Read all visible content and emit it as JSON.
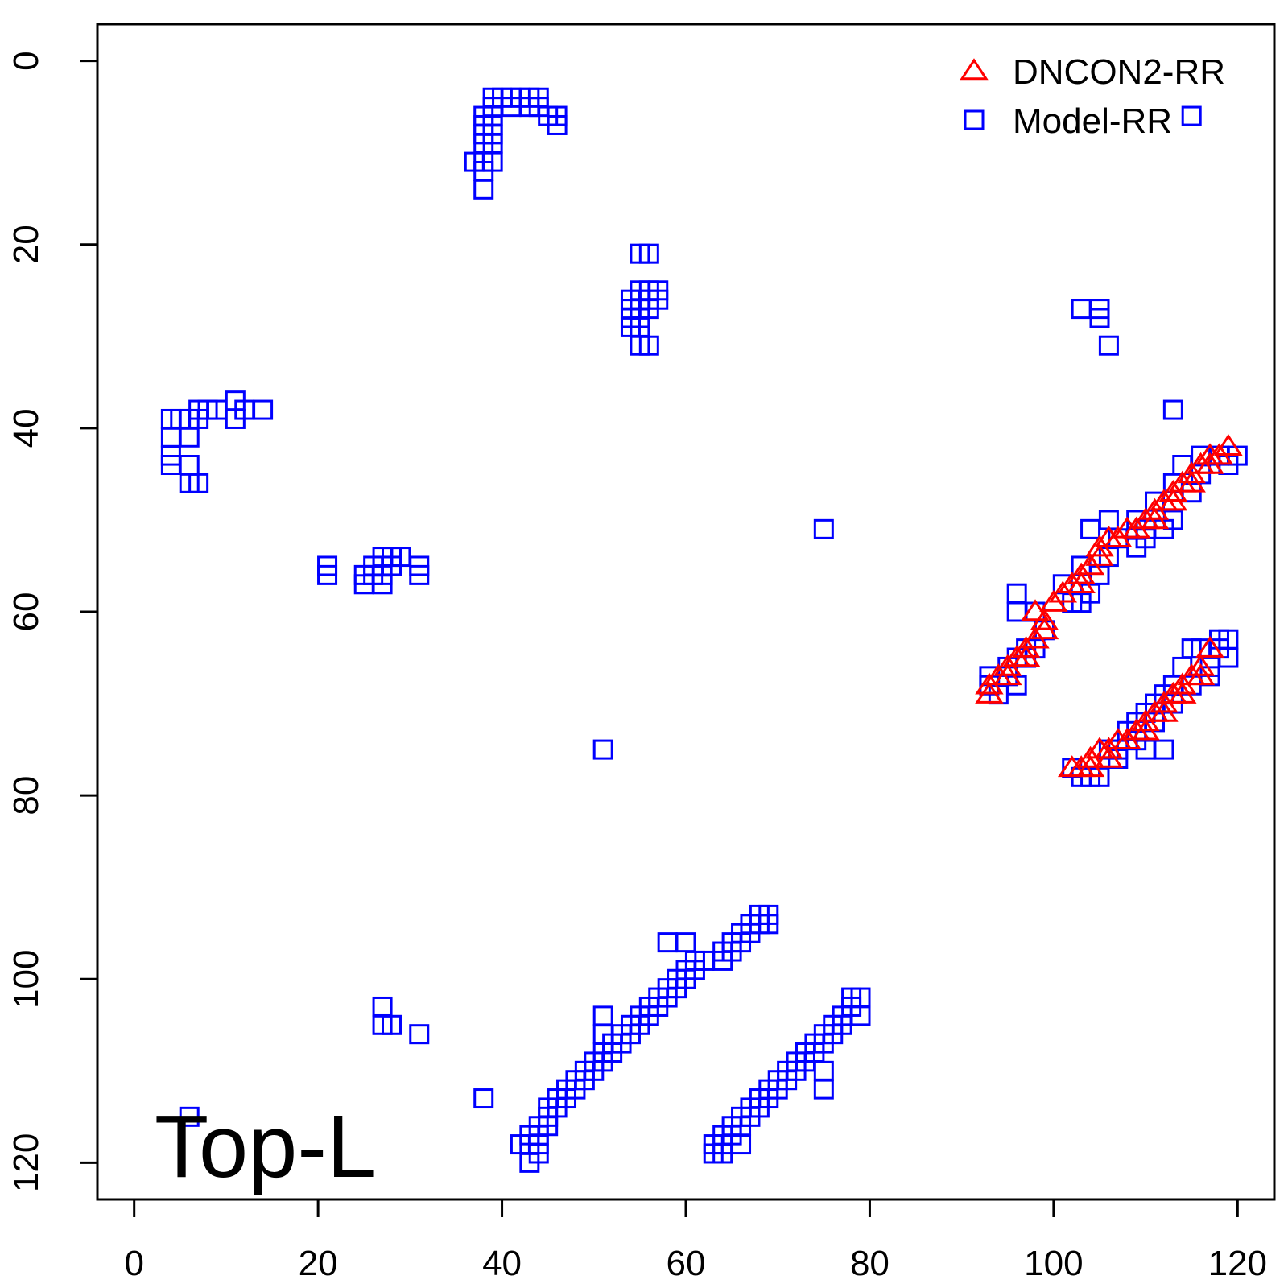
{
  "chart_data": {
    "type": "scatter",
    "title": "",
    "xlabel": "",
    "ylabel": "",
    "annotation": "Top-L",
    "xlim": [
      -4,
      124
    ],
    "ylim": [
      124,
      -4
    ],
    "y_reversed": true,
    "x_ticks": [
      0,
      20,
      40,
      60,
      80,
      100,
      120
    ],
    "y_ticks": [
      0,
      20,
      40,
      60,
      80,
      100,
      120
    ],
    "x_tick_labels": [
      "0",
      "20",
      "40",
      "60",
      "80",
      "100",
      "120"
    ],
    "y_tick_labels": [
      "0",
      "20",
      "40",
      "60",
      "80",
      "100",
      "120"
    ],
    "grid": false,
    "legend_position": "top-right",
    "series": [
      {
        "name": "DNCON2-RR",
        "marker": "triangle-open",
        "color": "#ff0000",
        "points": [
          [
            93,
            68
          ],
          [
            94,
            67
          ],
          [
            95,
            66
          ],
          [
            96,
            65
          ],
          [
            97,
            64
          ],
          [
            98,
            63
          ],
          [
            99,
            61
          ],
          [
            98,
            60
          ],
          [
            100,
            59
          ],
          [
            101,
            58
          ],
          [
            102,
            57
          ],
          [
            103,
            56
          ],
          [
            104,
            55
          ],
          [
            105,
            54
          ],
          [
            106,
            52
          ],
          [
            107,
            52
          ],
          [
            108,
            51
          ],
          [
            109,
            51
          ],
          [
            110,
            50
          ],
          [
            111,
            49
          ],
          [
            112,
            48
          ],
          [
            113,
            47
          ],
          [
            114,
            46
          ],
          [
            115,
            45
          ],
          [
            116,
            44
          ],
          [
            117,
            43
          ],
          [
            118,
            43
          ],
          [
            119,
            42
          ],
          [
            93,
            69
          ],
          [
            95,
            67
          ],
          [
            97,
            65
          ],
          [
            99,
            62
          ],
          [
            103,
            57
          ],
          [
            105,
            53
          ],
          [
            111,
            50
          ],
          [
            113,
            48
          ],
          [
            115,
            46
          ],
          [
            117,
            44
          ],
          [
            102,
            77
          ],
          [
            103,
            77
          ],
          [
            104,
            76
          ],
          [
            105,
            75
          ],
          [
            106,
            75
          ],
          [
            107,
            74
          ],
          [
            108,
            74
          ],
          [
            109,
            73
          ],
          [
            110,
            72
          ],
          [
            111,
            71
          ],
          [
            112,
            70
          ],
          [
            113,
            69
          ],
          [
            114,
            68
          ],
          [
            115,
            67
          ],
          [
            116,
            66
          ],
          [
            117,
            64
          ],
          [
            104,
            77
          ],
          [
            106,
            76
          ],
          [
            110,
            73
          ],
          [
            112,
            71
          ],
          [
            114,
            69
          ],
          [
            116,
            67
          ]
        ]
      },
      {
        "name": "Model-RR",
        "marker": "square-open",
        "color": "#0000ff",
        "points": [
          [
            39,
            4
          ],
          [
            40,
            4
          ],
          [
            41,
            4
          ],
          [
            42,
            4
          ],
          [
            43,
            4
          ],
          [
            44,
            4
          ],
          [
            39,
            5
          ],
          [
            41,
            5
          ],
          [
            43,
            5
          ],
          [
            44,
            5
          ],
          [
            45,
            6
          ],
          [
            46,
            6
          ],
          [
            46,
            7
          ],
          [
            38,
            6
          ],
          [
            39,
            6
          ],
          [
            38,
            7
          ],
          [
            39,
            7
          ],
          [
            38,
            8
          ],
          [
            39,
            8
          ],
          [
            38,
            9
          ],
          [
            39,
            9
          ],
          [
            37,
            11
          ],
          [
            38,
            11
          ],
          [
            39,
            11
          ],
          [
            38,
            12
          ],
          [
            38,
            14
          ],
          [
            55,
            21
          ],
          [
            56,
            21
          ],
          [
            55,
            25
          ],
          [
            56,
            25
          ],
          [
            57,
            25
          ],
          [
            54,
            26
          ],
          [
            55,
            26
          ],
          [
            56,
            26
          ],
          [
            57,
            26
          ],
          [
            54,
            27
          ],
          [
            55,
            27
          ],
          [
            56,
            27
          ],
          [
            54,
            28
          ],
          [
            55,
            28
          ],
          [
            54,
            29
          ],
          [
            55,
            29
          ],
          [
            55,
            31
          ],
          [
            56,
            31
          ],
          [
            103,
            27
          ],
          [
            105,
            27
          ],
          [
            105,
            28
          ],
          [
            106,
            31
          ],
          [
            115,
            6
          ],
          [
            113,
            38
          ],
          [
            4,
            39
          ],
          [
            6,
            39
          ],
          [
            7,
            38
          ],
          [
            8,
            38
          ],
          [
            9,
            38
          ],
          [
            11,
            37
          ],
          [
            12,
            38
          ],
          [
            14,
            38
          ],
          [
            11,
            39
          ],
          [
            7,
            39
          ],
          [
            5,
            39
          ],
          [
            4,
            41
          ],
          [
            6,
            41
          ],
          [
            4,
            43
          ],
          [
            4,
            44
          ],
          [
            6,
            44
          ],
          [
            6,
            46
          ],
          [
            7,
            46
          ],
          [
            21,
            55
          ],
          [
            21,
            56
          ],
          [
            25,
            56
          ],
          [
            26,
            55
          ],
          [
            27,
            54
          ],
          [
            28,
            54
          ],
          [
            29,
            54
          ],
          [
            31,
            55
          ],
          [
            31,
            56
          ],
          [
            25,
            57
          ],
          [
            27,
            57
          ],
          [
            26,
            56
          ],
          [
            27,
            55
          ],
          [
            28,
            55
          ],
          [
            27,
            56
          ],
          [
            75,
            51
          ],
          [
            51,
            75
          ],
          [
            27,
            103
          ],
          [
            27,
            105
          ],
          [
            28,
            105
          ],
          [
            31,
            106
          ],
          [
            38,
            113
          ],
          [
            6,
            115
          ],
          [
            43,
            117
          ],
          [
            43,
            118
          ],
          [
            44,
            117
          ],
          [
            43,
            120
          ],
          [
            44,
            118
          ],
          [
            44,
            116
          ],
          [
            45,
            115
          ],
          [
            45,
            114
          ],
          [
            46,
            113
          ],
          [
            46,
            114
          ],
          [
            47,
            112
          ],
          [
            47,
            113
          ],
          [
            48,
            111
          ],
          [
            48,
            112
          ],
          [
            49,
            110
          ],
          [
            49,
            111
          ],
          [
            50,
            109
          ],
          [
            50,
            110
          ],
          [
            51,
            108
          ],
          [
            51,
            109
          ],
          [
            52,
            107
          ],
          [
            52,
            108
          ],
          [
            53,
            106
          ],
          [
            53,
            107
          ],
          [
            54,
            105
          ],
          [
            54,
            106
          ],
          [
            55,
            104
          ],
          [
            55,
            105
          ],
          [
            56,
            103
          ],
          [
            56,
            104
          ],
          [
            57,
            102
          ],
          [
            57,
            103
          ],
          [
            58,
            101
          ],
          [
            58,
            102
          ],
          [
            59,
            100
          ],
          [
            59,
            101
          ],
          [
            60,
            99
          ],
          [
            60,
            100
          ],
          [
            61,
            98
          ],
          [
            61,
            99
          ],
          [
            62,
            98
          ],
          [
            64,
            97
          ],
          [
            64,
            98
          ],
          [
            65,
            96
          ],
          [
            65,
            97
          ],
          [
            66,
            95
          ],
          [
            66,
            96
          ],
          [
            67,
            94
          ],
          [
            67,
            95
          ],
          [
            68,
            93
          ],
          [
            68,
            94
          ],
          [
            69,
            93
          ],
          [
            69,
            94
          ],
          [
            58,
            96
          ],
          [
            60,
            96
          ],
          [
            51,
            104
          ],
          [
            51,
            106
          ],
          [
            45,
            116
          ],
          [
            44,
            119
          ],
          [
            42,
            118
          ],
          [
            63,
            118
          ],
          [
            63,
            119
          ],
          [
            64,
            117
          ],
          [
            64,
            118
          ],
          [
            65,
            116
          ],
          [
            65,
            117
          ],
          [
            66,
            115
          ],
          [
            66,
            116
          ],
          [
            67,
            114
          ],
          [
            67,
            115
          ],
          [
            68,
            113
          ],
          [
            68,
            114
          ],
          [
            69,
            112
          ],
          [
            69,
            113
          ],
          [
            70,
            111
          ],
          [
            70,
            112
          ],
          [
            71,
            110
          ],
          [
            71,
            111
          ],
          [
            72,
            109
          ],
          [
            72,
            110
          ],
          [
            73,
            108
          ],
          [
            73,
            109
          ],
          [
            74,
            107
          ],
          [
            74,
            108
          ],
          [
            75,
            106
          ],
          [
            75,
            107
          ],
          [
            76,
            105
          ],
          [
            76,
            106
          ],
          [
            77,
            104
          ],
          [
            77,
            105
          ],
          [
            78,
            102
          ],
          [
            78,
            103
          ],
          [
            79,
            102
          ],
          [
            79,
            104
          ],
          [
            75,
            110
          ],
          [
            75,
            112
          ],
          [
            64,
            119
          ],
          [
            66,
            118
          ],
          [
            93,
            67
          ],
          [
            93,
            68
          ],
          [
            94,
            69
          ],
          [
            95,
            66
          ],
          [
            96,
            65
          ],
          [
            96,
            68
          ],
          [
            97,
            64
          ],
          [
            96,
            60
          ],
          [
            96,
            58
          ],
          [
            98,
            60
          ],
          [
            98,
            64
          ],
          [
            99,
            62
          ],
          [
            101,
            57
          ],
          [
            102,
            59
          ],
          [
            103,
            55
          ],
          [
            104,
            51
          ],
          [
            104,
            58
          ],
          [
            106,
            50
          ],
          [
            106,
            54
          ],
          [
            107,
            52
          ],
          [
            109,
            50
          ],
          [
            109,
            53
          ],
          [
            110,
            52
          ],
          [
            111,
            48
          ],
          [
            112,
            51
          ],
          [
            113,
            46
          ],
          [
            114,
            44
          ],
          [
            116,
            43
          ],
          [
            118,
            43
          ],
          [
            120,
            43
          ],
          [
            119,
            44
          ],
          [
            116,
            45
          ],
          [
            115,
            47
          ],
          [
            113,
            50
          ],
          [
            110,
            51
          ],
          [
            105,
            56
          ],
          [
            103,
            59
          ],
          [
            97,
            65
          ],
          [
            95,
            67
          ],
          [
            102,
            77
          ],
          [
            103,
            78
          ],
          [
            104,
            78
          ],
          [
            105,
            78
          ],
          [
            106,
            75
          ],
          [
            107,
            76
          ],
          [
            108,
            73
          ],
          [
            109,
            72
          ],
          [
            110,
            71
          ],
          [
            110,
            75
          ],
          [
            111,
            70
          ],
          [
            112,
            69
          ],
          [
            112,
            75
          ],
          [
            113,
            68
          ],
          [
            114,
            66
          ],
          [
            115,
            64
          ],
          [
            116,
            64
          ],
          [
            117,
            67
          ],
          [
            118,
            64
          ],
          [
            118,
            63
          ],
          [
            119,
            65
          ],
          [
            119,
            63
          ],
          [
            109,
            74
          ],
          [
            107,
            75
          ],
          [
            111,
            72
          ],
          [
            113,
            70
          ],
          [
            115,
            68
          ],
          [
            117,
            66
          ]
        ]
      }
    ]
  }
}
